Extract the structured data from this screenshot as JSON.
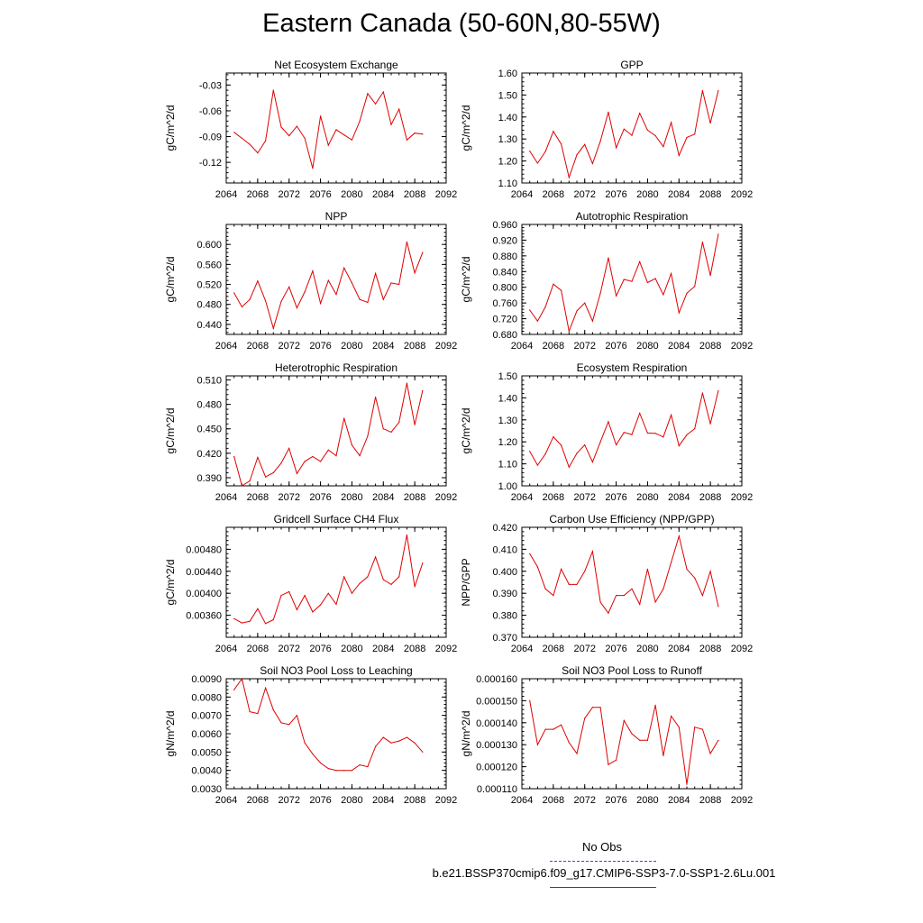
{
  "title": "Eastern Canada (50-60N,80-55W)",
  "legend": {
    "obs_label": "No Obs",
    "obs_color": "#4444cc",
    "case_label": "b.e21.BSSP370cmip6.f09_g17.CMIP6-SSP3-7.0-SSP1-2.6Lu.001",
    "case_color": "#e00000"
  },
  "chart_data": [
    {
      "type": "line",
      "title": "Net Ecosystem Exchange",
      "ylabel": "gC/m^2/d",
      "xlim": [
        2064,
        2092
      ],
      "xticks": [
        "2064",
        "2068",
        "2072",
        "2076",
        "2080",
        "2084",
        "2088",
        "2092"
      ],
      "ylim": [
        -0.144,
        -0.016
      ],
      "yticks": [
        "-0.03",
        "-0.06",
        "-0.09",
        "-0.12"
      ],
      "series": [
        {
          "x": [
            2065,
            2066,
            2067,
            2068,
            2069,
            2070,
            2071,
            2072,
            2073,
            2074,
            2075,
            2076,
            2077,
            2078,
            2079,
            2080,
            2081,
            2082,
            2083,
            2084,
            2085,
            2086,
            2087,
            2088,
            2089
          ],
          "values": [
            -0.085,
            -0.092,
            -0.099,
            -0.109,
            -0.095,
            -0.036,
            -0.079,
            -0.089,
            -0.078,
            -0.092,
            -0.127,
            -0.066,
            -0.1,
            -0.082,
            -0.088,
            -0.094,
            -0.072,
            -0.04,
            -0.052,
            -0.038,
            -0.076,
            -0.058,
            -0.094,
            -0.086,
            -0.087
          ]
        }
      ]
    },
    {
      "type": "line",
      "title": "GPP",
      "ylabel": "gC/m^2/d",
      "xlim": [
        2064,
        2092
      ],
      "xticks": [
        "2064",
        "2068",
        "2072",
        "2076",
        "2080",
        "2084",
        "2088",
        "2092"
      ],
      "ylim": [
        1.1,
        1.6
      ],
      "yticks": [
        "1.60",
        "1.50",
        "1.40",
        "1.30",
        "1.20",
        "1.10"
      ],
      "series": [
        {
          "x": [
            2065,
            2066,
            2067,
            2068,
            2069,
            2070,
            2071,
            2072,
            2073,
            2074,
            2075,
            2076,
            2077,
            2078,
            2079,
            2080,
            2081,
            2082,
            2083,
            2084,
            2085,
            2086,
            2087,
            2088,
            2089
          ],
          "values": [
            1.245,
            1.19,
            1.243,
            1.335,
            1.277,
            1.125,
            1.228,
            1.275,
            1.188,
            1.29,
            1.422,
            1.26,
            1.345,
            1.317,
            1.417,
            1.34,
            1.315,
            1.265,
            1.375,
            1.225,
            1.307,
            1.322,
            1.52,
            1.372,
            1.52
          ]
        }
      ]
    },
    {
      "type": "line",
      "title": "NPP",
      "ylabel": "gC/m^2/d",
      "xlim": [
        2064,
        2092
      ],
      "xticks": [
        "2064",
        "2068",
        "2072",
        "2076",
        "2080",
        "2084",
        "2088",
        "2092"
      ],
      "ylim": [
        0.42,
        0.64
      ],
      "yticks": [
        "0.600",
        "0.560",
        "0.520",
        "0.480",
        "0.440"
      ],
      "series": [
        {
          "x": [
            2065,
            2066,
            2067,
            2068,
            2069,
            2070,
            2071,
            2072,
            2073,
            2074,
            2075,
            2076,
            2077,
            2078,
            2079,
            2080,
            2081,
            2082,
            2083,
            2084,
            2085,
            2086,
            2087,
            2088,
            2089
          ],
          "values": [
            0.503,
            0.475,
            0.49,
            0.527,
            0.487,
            0.432,
            0.486,
            0.515,
            0.473,
            0.505,
            0.547,
            0.482,
            0.528,
            0.5,
            0.553,
            0.523,
            0.49,
            0.484,
            0.542,
            0.49,
            0.523,
            0.52,
            0.605,
            0.543,
            0.584
          ]
        }
      ]
    },
    {
      "type": "line",
      "title": "Autotrophic Respiration",
      "ylabel": "gC/m^2/d",
      "xlim": [
        2064,
        2092
      ],
      "xticks": [
        "2064",
        "2068",
        "2072",
        "2076",
        "2080",
        "2084",
        "2088",
        "2092"
      ],
      "ylim": [
        0.68,
        0.96
      ],
      "yticks": [
        "0.960",
        "0.920",
        "0.880",
        "0.840",
        "0.800",
        "0.760",
        "0.720",
        "0.680"
      ],
      "series": [
        {
          "x": [
            2065,
            2066,
            2067,
            2068,
            2069,
            2070,
            2071,
            2072,
            2073,
            2074,
            2075,
            2076,
            2077,
            2078,
            2079,
            2080,
            2081,
            2082,
            2083,
            2084,
            2085,
            2086,
            2087,
            2088,
            2089
          ],
          "values": [
            0.742,
            0.714,
            0.75,
            0.808,
            0.792,
            0.688,
            0.74,
            0.76,
            0.714,
            0.785,
            0.875,
            0.778,
            0.82,
            0.815,
            0.865,
            0.812,
            0.822,
            0.781,
            0.835,
            0.735,
            0.785,
            0.802,
            0.915,
            0.83,
            0.935
          ]
        }
      ]
    },
    {
      "type": "line",
      "title": "Heterotrophic Respiration",
      "ylabel": "gC/m^2/d",
      "xlim": [
        2064,
        2092
      ],
      "xticks": [
        "2064",
        "2068",
        "2072",
        "2076",
        "2080",
        "2084",
        "2088",
        "2092"
      ],
      "ylim": [
        0.38,
        0.515
      ],
      "yticks": [
        "0.510",
        "0.480",
        "0.450",
        "0.420",
        "0.390"
      ],
      "series": [
        {
          "x": [
            2065,
            2066,
            2067,
            2068,
            2069,
            2070,
            2071,
            2072,
            2073,
            2074,
            2075,
            2076,
            2077,
            2078,
            2079,
            2080,
            2081,
            2082,
            2083,
            2084,
            2085,
            2086,
            2087,
            2088,
            2089
          ],
          "values": [
            0.416,
            0.38,
            0.386,
            0.415,
            0.391,
            0.396,
            0.408,
            0.426,
            0.395,
            0.41,
            0.416,
            0.41,
            0.424,
            0.417,
            0.463,
            0.43,
            0.417,
            0.441,
            0.489,
            0.45,
            0.446,
            0.458,
            0.506,
            0.455,
            0.497
          ]
        }
      ]
    },
    {
      "type": "line",
      "title": "Ecosystem Respiration",
      "ylabel": "gC/m^2/d",
      "xlim": [
        2064,
        2092
      ],
      "xticks": [
        "2064",
        "2068",
        "2072",
        "2076",
        "2080",
        "2084",
        "2088",
        "2092"
      ],
      "ylim": [
        1.0,
        1.5
      ],
      "yticks": [
        "1.50",
        "1.40",
        "1.30",
        "1.20",
        "1.10",
        "1.00"
      ],
      "series": [
        {
          "x": [
            2065,
            2066,
            2067,
            2068,
            2069,
            2070,
            2071,
            2072,
            2073,
            2074,
            2075,
            2076,
            2077,
            2078,
            2079,
            2080,
            2081,
            2082,
            2083,
            2084,
            2085,
            2086,
            2087,
            2088,
            2089
          ],
          "values": [
            1.157,
            1.094,
            1.145,
            1.223,
            1.185,
            1.085,
            1.148,
            1.186,
            1.108,
            1.2,
            1.292,
            1.186,
            1.243,
            1.233,
            1.33,
            1.24,
            1.239,
            1.222,
            1.322,
            1.182,
            1.232,
            1.26,
            1.422,
            1.282,
            1.432
          ]
        }
      ]
    },
    {
      "type": "line",
      "title": "Gridcell Surface CH4 Flux",
      "ylabel": "gC/m^2/d",
      "xlim": [
        2064,
        2092
      ],
      "xticks": [
        "2064",
        "2068",
        "2072",
        "2076",
        "2080",
        "2084",
        "2088",
        "2092"
      ],
      "ylim": [
        0.0032,
        0.0052
      ],
      "yticks": [
        "0.00480",
        "0.00440",
        "0.00400",
        "0.00360"
      ],
      "series": [
        {
          "x": [
            2065,
            2066,
            2067,
            2068,
            2069,
            2070,
            2071,
            2072,
            2073,
            2074,
            2075,
            2076,
            2077,
            2078,
            2079,
            2080,
            2081,
            2082,
            2083,
            2084,
            2085,
            2086,
            2087,
            2088,
            2089
          ],
          "values": [
            0.00354,
            0.00346,
            0.00349,
            0.00372,
            0.00345,
            0.00352,
            0.00396,
            0.00403,
            0.0037,
            0.00396,
            0.00366,
            0.00379,
            0.004,
            0.0038,
            0.0043,
            0.004,
            0.00418,
            0.0043,
            0.00466,
            0.00425,
            0.00416,
            0.0043,
            0.00506,
            0.00412,
            0.00455
          ]
        }
      ]
    },
    {
      "type": "line",
      "title": "Carbon Use Efficiency (NPP/GPP)",
      "ylabel": "NPP/GPP",
      "xlim": [
        2064,
        2092
      ],
      "xticks": [
        "2064",
        "2068",
        "2072",
        "2076",
        "2080",
        "2084",
        "2088",
        "2092"
      ],
      "ylim": [
        0.37,
        0.42
      ],
      "yticks": [
        "0.420",
        "0.410",
        "0.400",
        "0.390",
        "0.380",
        "0.370"
      ],
      "series": [
        {
          "x": [
            2065,
            2066,
            2067,
            2068,
            2069,
            2070,
            2071,
            2072,
            2073,
            2074,
            2075,
            2076,
            2077,
            2078,
            2079,
            2080,
            2081,
            2082,
            2083,
            2084,
            2085,
            2086,
            2087,
            2088,
            2089
          ],
          "values": [
            0.408,
            0.402,
            0.392,
            0.389,
            0.401,
            0.394,
            0.394,
            0.4,
            0.409,
            0.386,
            0.381,
            0.389,
            0.389,
            0.392,
            0.385,
            0.401,
            0.386,
            0.392,
            0.404,
            0.416,
            0.401,
            0.397,
            0.389,
            0.4,
            0.384
          ]
        }
      ]
    },
    {
      "type": "line",
      "title": "Soil NO3 Pool Loss to Leaching",
      "ylabel": "gN/m^2/d",
      "xlim": [
        2064,
        2092
      ],
      "xticks": [
        "2064",
        "2068",
        "2072",
        "2076",
        "2080",
        "2084",
        "2088",
        "2092"
      ],
      "ylim": [
        0.003,
        0.009
      ],
      "yticks": [
        "0.0090",
        "0.0080",
        "0.0070",
        "0.0060",
        "0.0050",
        "0.0040",
        "0.0030"
      ],
      "series": [
        {
          "x": [
            2065,
            2066,
            2067,
            2068,
            2069,
            2070,
            2071,
            2072,
            2073,
            2074,
            2075,
            2076,
            2077,
            2078,
            2079,
            2080,
            2081,
            2082,
            2083,
            2084,
            2085,
            2086,
            2087,
            2088,
            2089
          ],
          "values": [
            0.0084,
            0.009,
            0.0072,
            0.0071,
            0.0085,
            0.0073,
            0.0066,
            0.0065,
            0.007,
            0.0055,
            0.0049,
            0.0044,
            0.0041,
            0.004,
            0.004,
            0.004,
            0.0043,
            0.0042,
            0.0053,
            0.0058,
            0.0055,
            0.0056,
            0.0058,
            0.0055,
            0.005
          ]
        }
      ]
    },
    {
      "type": "line",
      "title": "Soil NO3 Pool Loss to Runoff",
      "ylabel": "gN/m^2/d",
      "xlim": [
        2064,
        2092
      ],
      "xticks": [
        "2064",
        "2068",
        "2072",
        "2076",
        "2080",
        "2084",
        "2088",
        "2092"
      ],
      "ylim": [
        0.00011,
        0.00016
      ],
      "yticks": [
        "0.000160",
        "0.000150",
        "0.000140",
        "0.000130",
        "0.000120",
        "0.000110"
      ],
      "series": [
        {
          "x": [
            2065,
            2066,
            2067,
            2068,
            2069,
            2070,
            2071,
            2072,
            2073,
            2074,
            2075,
            2076,
            2077,
            2078,
            2079,
            2080,
            2081,
            2082,
            2083,
            2084,
            2085,
            2086,
            2087,
            2088,
            2089
          ],
          "values": [
            0.00015,
            0.00013,
            0.000137,
            0.000137,
            0.000139,
            0.000131,
            0.000126,
            0.000142,
            0.000147,
            0.000147,
            0.000121,
            0.000123,
            0.000141,
            0.000135,
            0.000132,
            0.000132,
            0.000148,
            0.000125,
            0.000143,
            0.000138,
            0.000112,
            0.000138,
            0.000137,
            0.000126,
            0.000132
          ]
        }
      ]
    }
  ]
}
